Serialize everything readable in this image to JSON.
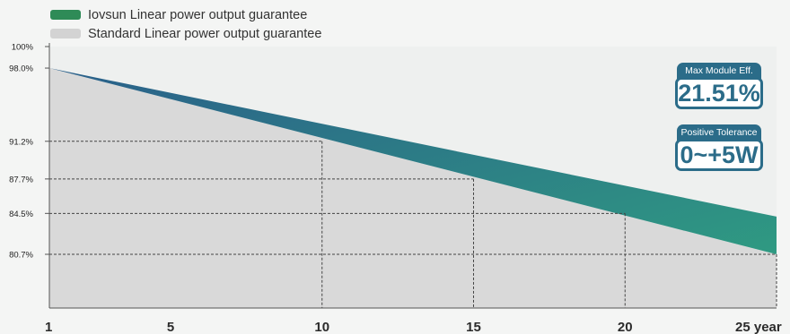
{
  "legend": {
    "items": [
      {
        "label": "Iovsun Linear power output guarantee",
        "color": "#2e8b57"
      },
      {
        "label": "Standard Linear power output guarantee",
        "color": "#d3d3d3"
      }
    ]
  },
  "badges": {
    "efficiency": {
      "title": "Max Module Eff.",
      "value": "21.51%"
    },
    "tolerance": {
      "title": "Positive Tolerance",
      "value": "0~+5W"
    }
  },
  "colors": {
    "accent": "#2b6c89",
    "gradient_start": "#2a5f8a",
    "gradient_end": "#2f9a82",
    "standard_fill": "#d9d9d9"
  },
  "chart_data": {
    "type": "area",
    "x_ticks": [
      "1",
      "5",
      "10",
      "15",
      "20",
      "25 year"
    ],
    "y_ticks": [
      "100%",
      "98.0%",
      "91.2%",
      "87.7%",
      "84.5%",
      "80.7%"
    ],
    "y_tick_values": [
      100,
      98.0,
      91.2,
      87.7,
      84.5,
      80.7
    ],
    "xlim": [
      1,
      25
    ],
    "ylim": [
      75,
      100
    ],
    "series": [
      {
        "name": "Iovsun Linear power output guarantee",
        "x": [
          1,
          25
        ],
        "values": [
          98.0,
          84.2
        ]
      },
      {
        "name": "Standard Linear power output guarantee",
        "x": [
          1,
          25
        ],
        "values": [
          98.0,
          80.7
        ]
      }
    ],
    "guide_lines": [
      {
        "x": 10,
        "y": 91.2
      },
      {
        "x": 15,
        "y": 87.7
      },
      {
        "x": 20,
        "y": 84.5
      },
      {
        "x": 25,
        "y": 80.7
      }
    ]
  }
}
